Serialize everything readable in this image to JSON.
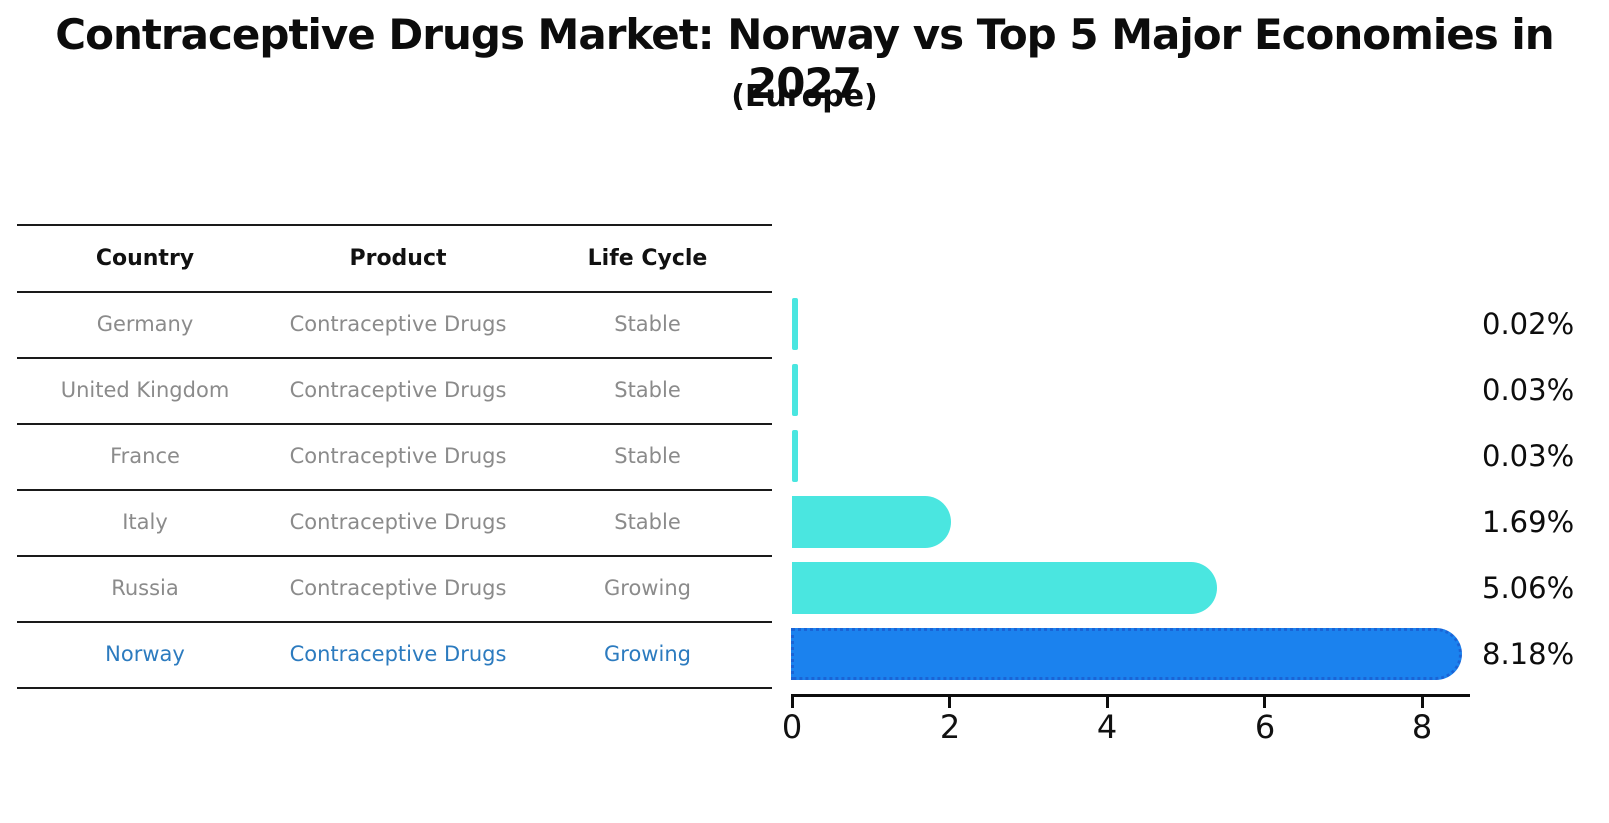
{
  "title": "Contraceptive Drugs Market: Norway vs Top 5 Major Economies in 2027",
  "subtitle": "(Europe)",
  "table": {
    "headers": [
      "Country",
      "Product",
      "Life Cycle"
    ],
    "rows": [
      {
        "country": "Germany",
        "product": "Contraceptive Drugs",
        "life_cycle": "Stable"
      },
      {
        "country": "United Kingdom",
        "product": "Contraceptive Drugs",
        "life_cycle": "Stable"
      },
      {
        "country": "France",
        "product": "Contraceptive Drugs",
        "life_cycle": "Stable"
      },
      {
        "country": "Italy",
        "product": "Contraceptive Drugs",
        "life_cycle": "Stable"
      },
      {
        "country": "Russia",
        "product": "Contraceptive Drugs",
        "life_cycle": "Growing"
      },
      {
        "country": "Norway",
        "product": "Contraceptive Drugs",
        "life_cycle": "Growing"
      }
    ]
  },
  "chart_data": {
    "type": "bar",
    "orientation": "horizontal",
    "categories": [
      "Germany",
      "United Kingdom",
      "France",
      "Italy",
      "Russia",
      "Norway"
    ],
    "values": [
      0.02,
      0.03,
      0.03,
      1.69,
      5.06,
      8.18
    ],
    "labels": [
      "0.02%",
      "0.03%",
      "0.03%",
      "1.69%",
      "5.06%",
      "8.18%"
    ],
    "value_unit": "%",
    "xlim": [
      0,
      8.6
    ],
    "xticks": [
      0,
      2,
      4,
      6,
      8
    ],
    "xtick_labels": [
      "0",
      "2",
      "4",
      "6",
      "8"
    ],
    "grid": "off",
    "legend": "none",
    "highlight_index": 5,
    "colors": {
      "bar": "#4ae6e0",
      "highlight_bar": "#1b82ee",
      "highlight_bar_border": "#1a64d6",
      "highlight_text": "#2c7bbf",
      "text": "#0d0d0d",
      "muted_text": "#8b8b8b"
    }
  }
}
